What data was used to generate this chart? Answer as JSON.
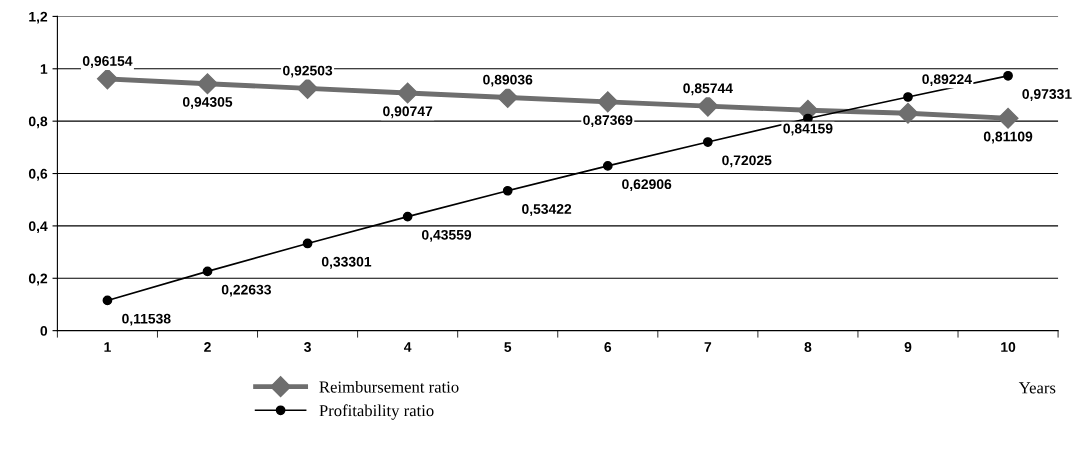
{
  "chart_data": {
    "type": "line",
    "xlabel": "Years",
    "categories": [
      "1",
      "2",
      "3",
      "4",
      "5",
      "6",
      "7",
      "8",
      "9",
      "10"
    ],
    "series": [
      {
        "name": "Reimbursement ratio",
        "color": "#6e6e6e",
        "marker": "diamond",
        "values": [
          0.96154,
          0.94305,
          0.92503,
          0.90747,
          0.89036,
          0.87369,
          0.85744,
          0.84159,
          0.83,
          0.81109
        ],
        "value_labels": [
          "0,96154",
          "0,94305",
          "0,92503",
          "0,90747",
          "0,89036",
          "0,87369",
          "0,85744",
          "0,84159",
          null,
          "0,81109"
        ]
      },
      {
        "name": "Profitability ratio",
        "color": "#000000",
        "marker": "circle",
        "values": [
          0.11538,
          0.22633,
          0.33301,
          0.43559,
          0.53422,
          0.62906,
          0.72025,
          0.81,
          0.89224,
          0.97331
        ],
        "value_labels": [
          "0,11538",
          "0,22633",
          "0,33301",
          "0,43559",
          "0,53422",
          "0,62906",
          "0,72025",
          null,
          "0,89224",
          "0,97331"
        ]
      }
    ],
    "ylim": [
      0,
      1.2
    ],
    "yticks": [
      0,
      {
        "value": 0.2,
        "label": "0,2"
      },
      {
        "value": 0.4,
        "label": "0,4"
      },
      {
        "value": 0.6,
        "label": "0,6"
      },
      {
        "value": 0.8,
        "label": "0,8"
      },
      1,
      {
        "value": 1.2,
        "label": "1,2"
      }
    ],
    "grid": "y",
    "legend": "bottom",
    "line_style": "solid"
  }
}
